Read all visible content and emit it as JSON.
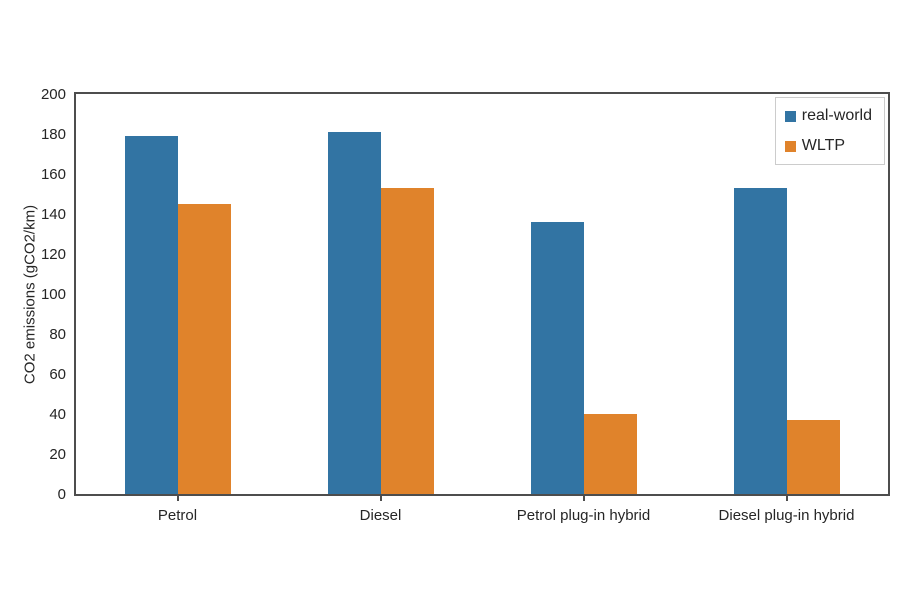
{
  "chart_data": {
    "type": "bar",
    "categories": [
      "Petrol",
      "Diesel",
      "Petrol plug-in hybrid",
      "Diesel plug-in hybrid"
    ],
    "series": [
      {
        "name": "real-world",
        "color": "#3274A3",
        "values": [
          179,
          181,
          136,
          153
        ]
      },
      {
        "name": "WLTP",
        "color": "#E0832B",
        "values": [
          145,
          153,
          40,
          37
        ]
      }
    ],
    "title": "",
    "xlabel": "",
    "ylabel": "CO2 emissions (gCO2/km)",
    "ylim": [
      0,
      200
    ],
    "ytick_step": 20,
    "ytick_labels": [
      "0",
      "20",
      "40",
      "60",
      "80",
      "100",
      "120",
      "140",
      "160",
      "180",
      "200"
    ],
    "grid": false,
    "legend_position": "top-right",
    "legend_entries": [
      "real-world",
      "WLTP"
    ]
  },
  "colors": {
    "background": "#ffffff",
    "axis": "#4d4d4d",
    "text": "#262626",
    "legend_border": "#cccccc",
    "series_real_world": "#3274A3",
    "series_wltp": "#E0832B"
  }
}
